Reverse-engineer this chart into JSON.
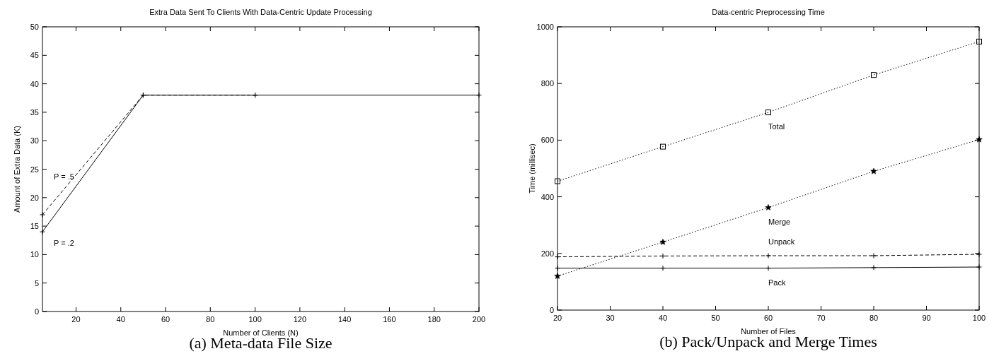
{
  "chart_data": [
    {
      "type": "line",
      "title": "Extra Data Sent To Clients With Data-Centric Update Processing",
      "xlabel": "Number of Clients (N)",
      "ylabel": "Amount of Extra Data (K)",
      "xlim": [
        5,
        200
      ],
      "xticks": [
        20,
        40,
        60,
        80,
        100,
        120,
        140,
        160,
        180,
        200
      ],
      "ylim": [
        0,
        50
      ],
      "yticks": [
        0,
        5,
        10,
        15,
        20,
        25,
        30,
        35,
        40,
        45,
        50
      ],
      "grid": false,
      "annotations": [
        "(a) Meta-data File Size"
      ],
      "series": [
        {
          "name": "P = .2",
          "color": "#000000",
          "x": [
            5,
            50,
            100,
            200
          ],
          "values": [
            14,
            38,
            38,
            38
          ],
          "marker": "cross",
          "line_style": "solid"
        },
        {
          "name": "P = .5",
          "color": "#000000",
          "x": [
            5,
            50,
            100
          ],
          "values": [
            17,
            38,
            38
          ],
          "marker": "cross",
          "line_style": "dashed"
        }
      ]
    },
    {
      "type": "line",
      "title": "Data-centric Preprocessing Time",
      "xlabel": "Number of Files",
      "ylabel": "Time (millisec)",
      "xlim": [
        20,
        100
      ],
      "xticks": [
        20,
        30,
        40,
        50,
        60,
        70,
        80,
        90,
        100
      ],
      "ylim": [
        0,
        1000
      ],
      "yticks": [
        0,
        200,
        400,
        600,
        800,
        1000
      ],
      "grid": false,
      "annotations": [
        "(b) Pack/Unpack and Merge Times"
      ],
      "series": [
        {
          "name": "Pack",
          "color": "#000000",
          "x": [
            20,
            40,
            60,
            80,
            100
          ],
          "values": [
            148,
            148,
            148,
            150,
            152
          ],
          "marker": "cross",
          "line_style": "solid"
        },
        {
          "name": "Unpack",
          "color": "#000000",
          "x": [
            20,
            40,
            60,
            80,
            100
          ],
          "values": [
            188,
            191,
            192,
            192,
            197
          ],
          "marker": "cross",
          "line_style": "dashed"
        },
        {
          "name": "Merge",
          "color": "#000000",
          "x": [
            20,
            40,
            60,
            80,
            100
          ],
          "values": [
            120,
            240,
            362,
            490,
            602
          ],
          "marker": "star",
          "line_style": "dotted"
        },
        {
          "name": "Total",
          "color": "#000000",
          "x": [
            20,
            40,
            60,
            80,
            100
          ],
          "values": [
            455,
            577,
            698,
            830,
            948
          ],
          "marker": "square",
          "line_style": "dotted"
        }
      ]
    }
  ]
}
